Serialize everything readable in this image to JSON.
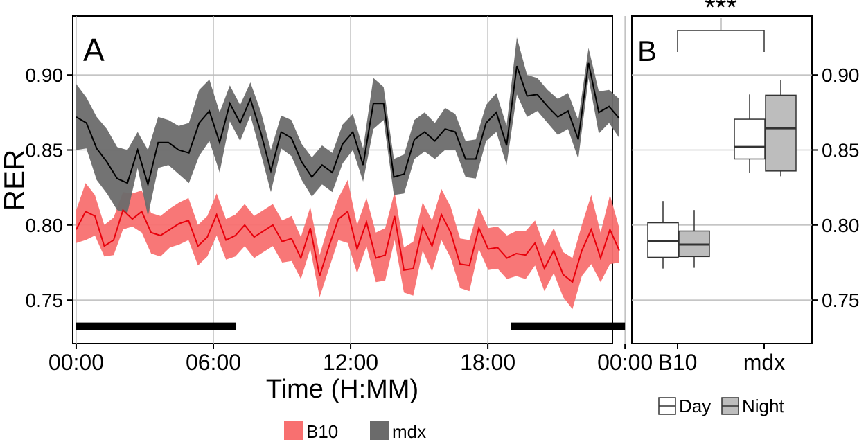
{
  "chart_data": [
    {
      "panel": "A",
      "type": "line",
      "xlabel": "Time (H:MM)",
      "ylabel": "RER",
      "xlim": [
        -0.15,
        23.45
      ],
      "ylim": [
        0.721,
        0.9393
      ],
      "x_ticks": [
        0,
        6,
        12,
        18,
        24
      ],
      "x_tick_labels": [
        "00:00",
        "06:00",
        "12:00",
        "18:00",
        "00:00"
      ],
      "y_ticks": [
        0.75,
        0.8,
        0.85,
        0.9
      ],
      "y_tick_labels": [
        "0.75",
        "0.80",
        "0.85",
        "0.90"
      ],
      "grid": true,
      "x_step_hours": 0.3333,
      "series": [
        {
          "name": "B10",
          "line_color": "#e8000b",
          "band_color": "#f87070",
          "values": [
            0.797,
            0.809,
            0.806,
            0.786,
            0.79,
            0.81,
            0.804,
            0.809,
            0.795,
            0.793,
            0.797,
            0.801,
            0.803,
            0.786,
            0.792,
            0.807,
            0.79,
            0.793,
            0.8,
            0.792,
            0.796,
            0.8,
            0.789,
            0.791,
            0.778,
            0.798,
            0.766,
            0.786,
            0.804,
            0.809,
            0.784,
            0.802,
            0.778,
            0.78,
            0.806,
            0.77,
            0.771,
            0.799,
            0.786,
            0.807,
            0.795,
            0.774,
            0.773,
            0.798,
            0.784,
            0.785,
            0.778,
            0.781,
            0.78,
            0.788,
            0.771,
            0.783,
            0.767,
            0.762,
            0.783,
            0.797,
            0.778,
            0.797,
            0.783
          ],
          "upper": [
            0.81,
            0.828,
            0.82,
            0.8,
            0.805,
            0.822,
            0.821,
            0.823,
            0.808,
            0.806,
            0.811,
            0.815,
            0.818,
            0.8,
            0.806,
            0.821,
            0.804,
            0.807,
            0.814,
            0.806,
            0.81,
            0.814,
            0.803,
            0.806,
            0.792,
            0.812,
            0.78,
            0.801,
            0.818,
            0.83,
            0.8,
            0.818,
            0.795,
            0.798,
            0.822,
            0.785,
            0.789,
            0.815,
            0.803,
            0.824,
            0.812,
            0.791,
            0.79,
            0.812,
            0.798,
            0.799,
            0.793,
            0.796,
            0.796,
            0.803,
            0.786,
            0.798,
            0.782,
            0.778,
            0.8,
            0.82,
            0.795,
            0.82,
            0.798
          ],
          "lower": [
            0.788,
            0.79,
            0.793,
            0.779,
            0.78,
            0.797,
            0.799,
            0.795,
            0.781,
            0.779,
            0.785,
            0.787,
            0.79,
            0.773,
            0.779,
            0.793,
            0.777,
            0.779,
            0.786,
            0.778,
            0.782,
            0.786,
            0.775,
            0.776,
            0.764,
            0.784,
            0.752,
            0.771,
            0.79,
            0.788,
            0.768,
            0.786,
            0.762,
            0.763,
            0.79,
            0.755,
            0.753,
            0.783,
            0.769,
            0.79,
            0.778,
            0.758,
            0.756,
            0.784,
            0.77,
            0.771,
            0.764,
            0.766,
            0.764,
            0.773,
            0.756,
            0.768,
            0.752,
            0.744,
            0.766,
            0.774,
            0.762,
            0.774,
            0.775
          ]
        },
        {
          "name": "mdx",
          "line_color": "#000000",
          "band_color": "#6b6b6b",
          "values": [
            0.872,
            0.868,
            0.851,
            0.842,
            0.831,
            0.828,
            0.85,
            0.827,
            0.855,
            0.855,
            0.85,
            0.848,
            0.868,
            0.876,
            0.855,
            0.881,
            0.868,
            0.884,
            0.862,
            0.836,
            0.862,
            0.858,
            0.842,
            0.832,
            0.84,
            0.835,
            0.854,
            0.862,
            0.84,
            0.881,
            0.881,
            0.832,
            0.834,
            0.857,
            0.862,
            0.856,
            0.864,
            0.862,
            0.844,
            0.844,
            0.868,
            0.875,
            0.853,
            0.906,
            0.886,
            0.887,
            0.879,
            0.872,
            0.876,
            0.857,
            0.908,
            0.875,
            0.879,
            0.871
          ],
          "upper": [
            0.894,
            0.885,
            0.872,
            0.864,
            0.852,
            0.85,
            0.862,
            0.85,
            0.872,
            0.87,
            0.866,
            0.868,
            0.89,
            0.897,
            0.875,
            0.893,
            0.88,
            0.895,
            0.876,
            0.85,
            0.873,
            0.87,
            0.854,
            0.845,
            0.853,
            0.848,
            0.867,
            0.874,
            0.851,
            0.898,
            0.892,
            0.844,
            0.847,
            0.87,
            0.875,
            0.868,
            0.878,
            0.874,
            0.856,
            0.857,
            0.88,
            0.888,
            0.866,
            0.925,
            0.9,
            0.898,
            0.89,
            0.884,
            0.888,
            0.87,
            0.918,
            0.889,
            0.89,
            0.884
          ],
          "lower": [
            0.85,
            0.851,
            0.83,
            0.821,
            0.81,
            0.808,
            0.838,
            0.806,
            0.838,
            0.84,
            0.834,
            0.828,
            0.846,
            0.856,
            0.835,
            0.869,
            0.856,
            0.873,
            0.848,
            0.822,
            0.851,
            0.846,
            0.83,
            0.819,
            0.827,
            0.822,
            0.841,
            0.85,
            0.829,
            0.864,
            0.87,
            0.82,
            0.821,
            0.844,
            0.849,
            0.844,
            0.85,
            0.85,
            0.832,
            0.831,
            0.856,
            0.862,
            0.84,
            0.887,
            0.872,
            0.876,
            0.868,
            0.86,
            0.864,
            0.844,
            0.898,
            0.861,
            0.868,
            0.858
          ]
        }
      ],
      "dark_phase_bars": [
        [
          0,
          7
        ],
        [
          19,
          24
        ]
      ],
      "dark_phase_bar_y": 0.7325
    },
    {
      "panel": "B",
      "type": "boxplot",
      "categories": [
        "B10",
        "mdx"
      ],
      "ylim": [
        0.721,
        0.9393
      ],
      "y_ticks": [
        0.75,
        0.8,
        0.85,
        0.9
      ],
      "y_tick_labels": [
        "0.75",
        "0.80",
        "0.85",
        "0.90"
      ],
      "grid": true,
      "y_axis_side": "right",
      "significance": {
        "label": "***",
        "between": [
          "B10",
          "mdx"
        ],
        "y": 0.9353
      },
      "groups": [
        {
          "name": "Day",
          "fill": "#ffffff"
        },
        {
          "name": "Night",
          "fill": "#bdbdbd"
        }
      ],
      "boxes": [
        {
          "category": "B10",
          "group": "Day",
          "whisker_low": 0.771,
          "q1": 0.7785,
          "median": 0.7895,
          "q3": 0.8015,
          "whisker_high": 0.816
        },
        {
          "category": "B10",
          "group": "Night",
          "whisker_low": 0.7715,
          "q1": 0.779,
          "median": 0.787,
          "q3": 0.796,
          "whisker_high": 0.81
        },
        {
          "category": "mdx",
          "group": "Day",
          "whisker_low": 0.835,
          "q1": 0.844,
          "median": 0.852,
          "q3": 0.8705,
          "whisker_high": 0.887
        },
        {
          "category": "mdx",
          "group": "Night",
          "whisker_low": 0.8325,
          "q1": 0.836,
          "median": 0.8645,
          "q3": 0.8865,
          "whisker_high": 0.8965
        }
      ]
    }
  ],
  "labels": {
    "panel_a": "A",
    "panel_b": "B"
  },
  "legend_a": [
    {
      "label": "B10",
      "color": "#f87070"
    },
    {
      "label": "mdx",
      "color": "#6b6b6b"
    }
  ],
  "legend_b": [
    {
      "label": "Day",
      "fill": "#ffffff"
    },
    {
      "label": "Night",
      "fill": "#bdbdbd"
    }
  ],
  "colors": {
    "grid": "#bdbdbd",
    "frame": "#000000"
  }
}
